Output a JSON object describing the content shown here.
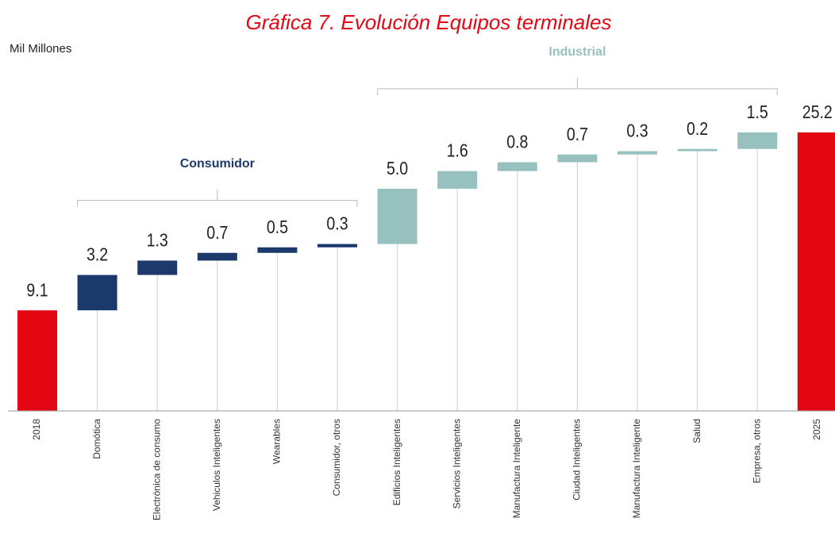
{
  "chart_data": {
    "type": "waterfall",
    "title": "Gráfica 7. Evolución Equipos terminales",
    "y_label": "Mil Millones",
    "categories": [
      "2018",
      "Domótica",
      "Electrónica de consumo",
      "Vehiculos Inteligentes",
      "Wearables",
      "Consumidor, otros",
      "Edificios Inteligentes",
      "Servicios Inteligentes",
      "Manufactura Inteligente",
      "Ciudad Inteligentes",
      "Manufactura Inteligente",
      "Salud",
      "Empresa, otros",
      "2025"
    ],
    "values": [
      9.1,
      3.2,
      1.3,
      0.7,
      0.5,
      0.3,
      5.0,
      1.6,
      0.8,
      0.7,
      0.3,
      0.2,
      1.5,
      25.2
    ],
    "value_labels": [
      "9.1",
      "3.2",
      "1.3",
      "0.7",
      "0.5",
      "0.3",
      "5.0",
      "1.6",
      "0.8",
      "0.7",
      "0.3",
      "0.2",
      "1.5",
      "25.2"
    ],
    "is_total": [
      true,
      false,
      false,
      false,
      false,
      false,
      false,
      false,
      false,
      false,
      false,
      false,
      false,
      true
    ],
    "colors": [
      "#e30613",
      "#1b3a6b",
      "#1b3a6b",
      "#1b3a6b",
      "#1b3a6b",
      "#1b3a6b",
      "#97c1bf",
      "#97c1bf",
      "#97c1bf",
      "#97c1bf",
      "#97c1bf",
      "#97c1bf",
      "#97c1bf",
      "#e30613"
    ],
    "groups": [
      {
        "label": "Consumidor",
        "start": 1,
        "end": 5,
        "color": "#1b3a6b"
      },
      {
        "label": "Industrial",
        "start": 6,
        "end": 12,
        "color": "#97c1bf"
      }
    ],
    "ylim": [
      0,
      30
    ]
  }
}
